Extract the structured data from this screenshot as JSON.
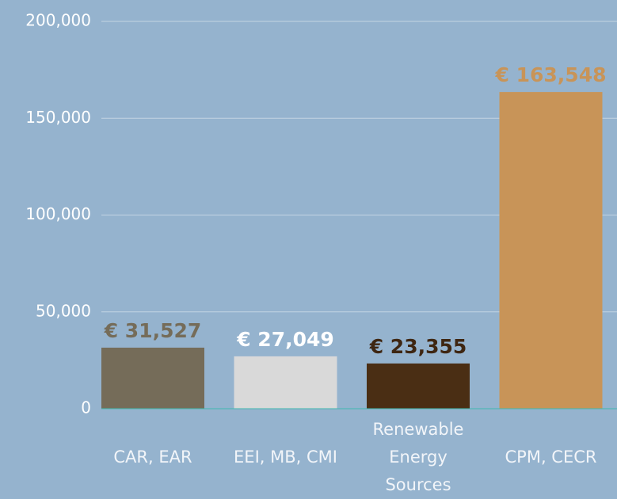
{
  "chart_data": {
    "type": "bar",
    "categories": [
      "CAR, EAR",
      "EEI, MB, CMI",
      "Renewable Energy Sources",
      "CPM, CECR"
    ],
    "series": [
      {
        "colors": [
          "#756c59",
          "#d9d9d9",
          "#4a2e14",
          "#c89458"
        ],
        "label_colors": [
          "#756c59",
          "#ffffff",
          "#3e2612",
          "#c89458"
        ],
        "values": [
          31527,
          27049,
          23355,
          163548
        ],
        "value_labels": [
          "€ 31,527",
          "€ 27,049",
          "€ 23,355",
          "€ 163,548"
        ]
      }
    ],
    "ylim": [
      0,
      200000
    ],
    "yticks": [
      0,
      {
        "value": 50000,
        "label": "50,000"
      },
      {
        "value": 100000,
        "label": "100,000"
      },
      {
        "value": 150000,
        "label": "150,000"
      },
      {
        "value": 200000,
        "label": "200,000"
      }
    ],
    "grid": true
  }
}
